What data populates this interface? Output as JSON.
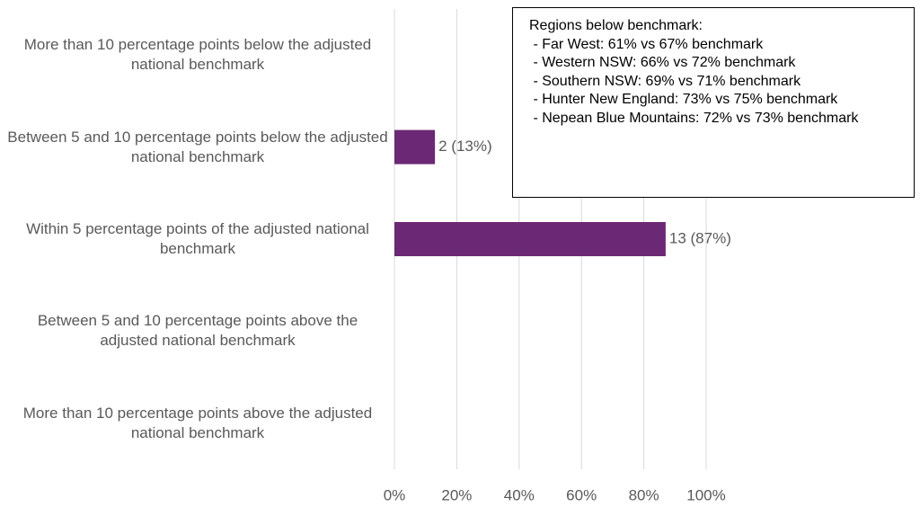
{
  "chart_data": {
    "type": "hbar",
    "categories": [
      "More than 10 percentage points below the adjusted national benchmark",
      "Between 5 and 10 percentage points below the adjusted national benchmark",
      "Within 5 percentage points of the adjusted national benchmark",
      "Between 5 and 10 percentage points above the adjusted national benchmark",
      "More than 10 percentage points above the adjusted national benchmark"
    ],
    "values": [
      0,
      13,
      87,
      0,
      0
    ],
    "value_labels": [
      null,
      "2 (13%)",
      "13 (87%)",
      null,
      null
    ],
    "color": "#6b2874",
    "xlim": [
      0,
      100
    ],
    "xticks": [
      {
        "value": 0,
        "label": "0%"
      },
      {
        "value": 20,
        "label": "20%"
      },
      {
        "value": 40,
        "label": "40%"
      },
      {
        "value": 60,
        "label": "60%"
      },
      {
        "value": 80,
        "label": "80%"
      },
      {
        "value": 100,
        "label": "100%"
      }
    ],
    "grid": true,
    "annotation": [
      "Regions below benchmark:",
      " - Far West: 61% vs 67% benchmark",
      " - Western NSW: 66% vs 72% benchmark",
      " - Southern NSW: 69% vs 71% benchmark",
      " - Hunter New England: 73% vs 75% benchmark",
      " - Nepean Blue Mountains: 72% vs 73% benchmark"
    ]
  }
}
